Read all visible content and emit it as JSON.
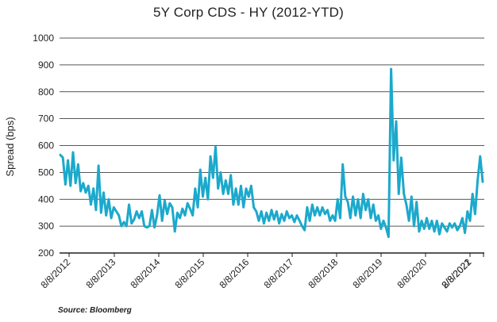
{
  "chart_data": {
    "type": "line",
    "title": "5Y Corp CDS - HY (2012-YTD)",
    "xlabel": "",
    "ylabel": "Spread (bps)",
    "ylim": [
      200,
      1000
    ],
    "yticks": [
      "200",
      "300",
      "400",
      "500",
      "600",
      "700",
      "800",
      "900",
      "1000"
    ],
    "xticks": [
      "8/8/2012",
      "8/8/2013",
      "8/8/2014",
      "8/8/2015",
      "8/8/2016",
      "8/8/2017",
      "8/8/2018",
      "8/8/2019",
      "8/8/2020",
      "8/8/2021",
      "2/8/2022"
    ],
    "grid": "horizontal",
    "line_color": "#1ba9cc",
    "series": [
      {
        "values": [
          565,
          555,
          455,
          545,
          450,
          575,
          460,
          530,
          430,
          460,
          425,
          450,
          380,
          440,
          360,
          525,
          350,
          425,
          340,
          400,
          330,
          370,
          355,
          340,
          300,
          315,
          300,
          380,
          310,
          325,
          355,
          330,
          355,
          300,
          295,
          300,
          360,
          295,
          340,
          415,
          320,
          395,
          345,
          385,
          370,
          280,
          350,
          330,
          365,
          340,
          385,
          365,
          340,
          440,
          370,
          510,
          410,
          480,
          400,
          560,
          480,
          595,
          440,
          500,
          420,
          470,
          420,
          490,
          380,
          440,
          380,
          450,
          370,
          440,
          410,
          450,
          370,
          355,
          320,
          355,
          310,
          350,
          320,
          360,
          325,
          355,
          310,
          345,
          320,
          355,
          330,
          340,
          315,
          340,
          320,
          300,
          285,
          370,
          320,
          380,
          340,
          370,
          340,
          370,
          345,
          360,
          320,
          340,
          320,
          400,
          330,
          530,
          410,
          390,
          330,
          410,
          340,
          400,
          330,
          420,
          360,
          400,
          330,
          380,
          320,
          340,
          290,
          320,
          295,
          260,
          885,
          545,
          690,
          420,
          555,
          420,
          380,
          320,
          410,
          300,
          390,
          280,
          320,
          290,
          330,
          290,
          320,
          280,
          320,
          270,
          310,
          295,
          280,
          310,
          295,
          310,
          285,
          300,
          330,
          275,
          355,
          320,
          420,
          345,
          470,
          560,
          465
        ]
      }
    ],
    "source": "Source: Bloomberg"
  }
}
